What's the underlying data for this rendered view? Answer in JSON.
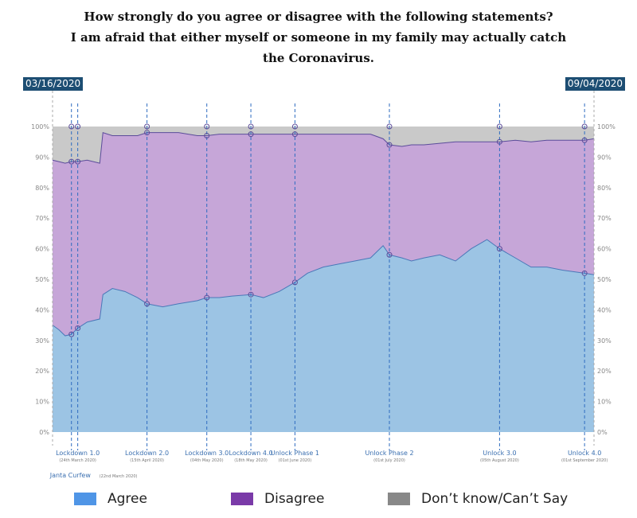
{
  "title_lines": [
    "How strongly do you agree or disagree with the following statements?",
    "I am afraid that either myself or someone in my family may actually catch",
    "the Coronavirus."
  ],
  "date_start": "03/16/2020",
  "date_end": "09/04/2020",
  "colors": {
    "agree": "#9cc4e4",
    "agree_line": "#4a78b8",
    "disagree": "#c6a6d8",
    "disagree_line": "#5b4c9a",
    "dontknow": "#c9c9c9",
    "date_badge": "#1d4e73",
    "event_line": "#2f6cc0"
  },
  "legend": [
    {
      "label": "Agree",
      "color": "#4f95e6"
    },
    {
      "label": "Disagree",
      "color": "#7a3aa8"
    },
    {
      "label": "Don’t know/Can’t Say",
      "color": "#888888"
    }
  ],
  "events": [
    {
      "date": "2020-03-22",
      "label": "Janta Curfew",
      "sub": "(22nd March 2020)"
    },
    {
      "date": "2020-03-24",
      "label": "Lockdown 1.0",
      "sub": "(24th March 2020)"
    },
    {
      "date": "2020-04-15",
      "label": "Lockdown 2.0",
      "sub": "(15th April 2020)"
    },
    {
      "date": "2020-05-04",
      "label": "Lockdown 3.0",
      "sub": "(04th May 2020)"
    },
    {
      "date": "2020-05-18",
      "label": "Lockdown 4.0",
      "sub": "(18th May 2020)"
    },
    {
      "date": "2020-06-01",
      "label": "Unlock Phase 1",
      "sub": "(01st June 2020)"
    },
    {
      "date": "2020-07-01",
      "label": "Unlock Phase 2",
      "sub": "(01st July 2020)"
    },
    {
      "date": "2020-08-05",
      "label": "Unlock 3.0",
      "sub": "(05th August 2020)"
    },
    {
      "date": "2020-09-01",
      "label": "Unlock 4.0",
      "sub": "(01st September 2020)"
    }
  ],
  "chart_data": {
    "type": "area",
    "stacked": true,
    "title": "How strongly do you agree or disagree with the following statements? I am afraid that either myself or someone in my family may actually catch the Coronavirus.",
    "x_range": [
      "2020-03-16",
      "2020-09-04"
    ],
    "ylim": [
      0,
      100
    ],
    "y_ticks": [
      "0%",
      "10%",
      "20%",
      "30%",
      "40%",
      "50%",
      "60%",
      "70%",
      "80%",
      "90%",
      "100%"
    ],
    "x": [
      "2020-03-16",
      "2020-03-18",
      "2020-03-20",
      "2020-03-22",
      "2020-03-24",
      "2020-03-27",
      "2020-03-31",
      "2020-04-01",
      "2020-04-04",
      "2020-04-08",
      "2020-04-12",
      "2020-04-15",
      "2020-04-20",
      "2020-04-25",
      "2020-05-01",
      "2020-05-04",
      "2020-05-08",
      "2020-05-12",
      "2020-05-18",
      "2020-05-22",
      "2020-05-27",
      "2020-06-01",
      "2020-06-05",
      "2020-06-10",
      "2020-06-15",
      "2020-06-20",
      "2020-06-25",
      "2020-06-29",
      "2020-07-01",
      "2020-07-05",
      "2020-07-08",
      "2020-07-12",
      "2020-07-17",
      "2020-07-22",
      "2020-07-27",
      "2020-08-01",
      "2020-08-05",
      "2020-08-10",
      "2020-08-15",
      "2020-08-20",
      "2020-08-25",
      "2020-09-01",
      "2020-09-04"
    ],
    "series": [
      {
        "name": "Agree",
        "values": [
          35.0,
          33.5,
          31.5,
          32.0,
          34.0,
          36.0,
          37.0,
          45.0,
          47.0,
          46.0,
          44.0,
          42.0,
          41.0,
          42.0,
          43.0,
          44.0,
          44.0,
          44.5,
          45.0,
          44.0,
          46.0,
          49.0,
          52.0,
          54.0,
          55.0,
          56.0,
          57.0,
          61.0,
          58.0,
          57.0,
          56.0,
          57.0,
          58.0,
          56.0,
          60.0,
          63.0,
          60.0,
          57.0,
          54.0,
          54.0,
          53.0,
          52.0,
          51.5
        ]
      },
      {
        "name": "Disagree",
        "values": [
          54.0,
          55.0,
          56.5,
          56.5,
          54.5,
          53.0,
          51.0,
          53.0,
          50.0,
          51.0,
          53.0,
          56.0,
          57.0,
          56.0,
          54.0,
          53.0,
          53.5,
          53.0,
          52.5,
          53.5,
          51.5,
          48.5,
          45.5,
          43.5,
          42.5,
          41.5,
          40.5,
          35.0,
          36.0,
          36.5,
          38.0,
          37.0,
          36.5,
          39.0,
          35.0,
          32.0,
          35.0,
          38.5,
          41.0,
          41.5,
          42.5,
          43.5,
          44.5
        ]
      },
      {
        "name": "Don't know/Can't Say",
        "values": [
          11.0,
          11.5,
          12.0,
          11.5,
          11.5,
          11.0,
          12.0,
          2.0,
          3.0,
          3.0,
          3.0,
          2.0,
          2.0,
          2.0,
          3.0,
          3.0,
          2.5,
          2.5,
          2.5,
          2.5,
          2.5,
          2.5,
          2.5,
          2.5,
          2.5,
          2.5,
          2.5,
          4.0,
          6.0,
          6.5,
          6.0,
          6.0,
          5.5,
          5.0,
          5.0,
          5.0,
          5.0,
          4.5,
          5.0,
          4.5,
          4.5,
          4.5,
          4.0
        ]
      }
    ]
  }
}
